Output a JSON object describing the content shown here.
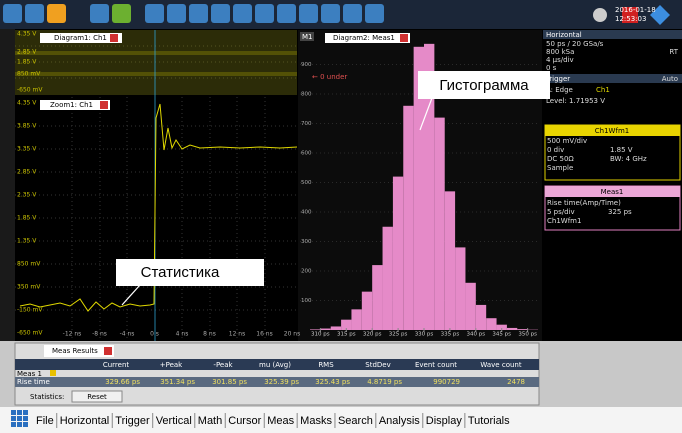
{
  "toolbar": {
    "date": "2016-01-18",
    "time": "12:53:03"
  },
  "horizontal": {
    "title": "Horizontal",
    "resolution": "50 ps / 20 GSa/s",
    "record": "800 kSa",
    "mode": "RT",
    "scale": "4 µs/div",
    "position": "0 s"
  },
  "trigger": {
    "title": "Trigger",
    "mode": "Auto",
    "source": "A: Edge",
    "channel": "Ch1",
    "level": "Level: 1.71953 V"
  },
  "channel": {
    "title": "Ch1Wfm1",
    "scale": "500 mV/div",
    "offset_div": "0 div",
    "offset": "1.85 V",
    "coupling": "DC 50Ω",
    "bandwidth": "BW: 4 GHz",
    "acquisition": "Sample"
  },
  "measurement": {
    "title": "Meas1",
    "name": "Rise time(Amp/Time)",
    "scale": "5 ps/div",
    "value": "325 ps",
    "source": "Ch1Wfm1"
  },
  "diagram1": {
    "title": "Diagram1: Ch1",
    "yticks": [
      "4.35 V",
      "2.85 V",
      "1.85 V",
      "850 mV",
      "-650 mV"
    ]
  },
  "zoom1": {
    "title": "Zoom1: Ch1",
    "yticks": [
      "4.35 V",
      "3.85 V",
      "3.35 V",
      "2.85 V",
      "2.35 V",
      "1.85 V",
      "1.35 V",
      "850 mV",
      "350 mV",
      "-150 mV",
      "-650 mV"
    ],
    "xticks": [
      "-12 ns",
      "-8 ns",
      "-4 ns",
      "0 s",
      "4 ns",
      "8 ns",
      "12 ns",
      "16 ns",
      "20 ns"
    ]
  },
  "diagram2": {
    "title": "Diagram2: Meas1",
    "badge": "M1",
    "under": "← 0 under",
    "histogram": {
      "type": "histogram",
      "color": "#e58ac8",
      "bins": [
        308,
        310,
        312,
        314,
        316,
        318,
        320,
        322,
        324,
        326,
        328,
        330,
        332,
        334,
        336,
        338,
        340,
        342,
        344,
        346,
        348,
        350,
        352
      ],
      "counts": [
        2,
        5,
        12,
        35,
        70,
        130,
        220,
        350,
        520,
        760,
        960,
        970,
        720,
        470,
        280,
        160,
        85,
        40,
        18,
        7,
        3,
        1
      ],
      "xlim": [
        308,
        352
      ],
      "ylim": [
        0,
        1000
      ],
      "xticks": [
        {
          "value": 310,
          "label": "310 ps"
        },
        {
          "value": 315,
          "label": "315 ps"
        },
        {
          "value": 320,
          "label": "320 ps"
        },
        {
          "value": 325,
          "label": "325 ps"
        },
        {
          "value": 330,
          "label": "330 ps"
        },
        {
          "value": 335,
          "label": "335 ps"
        },
        {
          "value": 340,
          "label": "340 ps"
        },
        {
          "value": 345,
          "label": "345 ps"
        },
        {
          "value": 350,
          "label": "350 ps"
        }
      ],
      "yticks": [
        100,
        200,
        300,
        400,
        500,
        600,
        700,
        800,
        900
      ]
    }
  },
  "annotations": {
    "histogram": "Гистограмма",
    "statistics": "Статистика"
  },
  "results": {
    "tab": "Meas Results",
    "columns": [
      "Current",
      "+Peak",
      "-Peak",
      "mu (Avg)",
      "RMS",
      "StdDev",
      "Event count",
      "Wave count"
    ],
    "group": "Meas 1",
    "row_label": "Rise time",
    "cells": [
      "329.66 ps",
      "351.34 ps",
      "301.85 ps",
      "325.39 ps",
      "325.43 ps",
      "4.8719 ps",
      "990729",
      "2478"
    ],
    "statistics": "Statistics:",
    "reset": "Reset"
  },
  "menu": [
    "File",
    "Horizontal",
    "Trigger",
    "Vertical",
    "Math",
    "Cursor",
    "Meas",
    "Masks",
    "Search",
    "Analysis",
    "Display",
    "Tutorials"
  ]
}
